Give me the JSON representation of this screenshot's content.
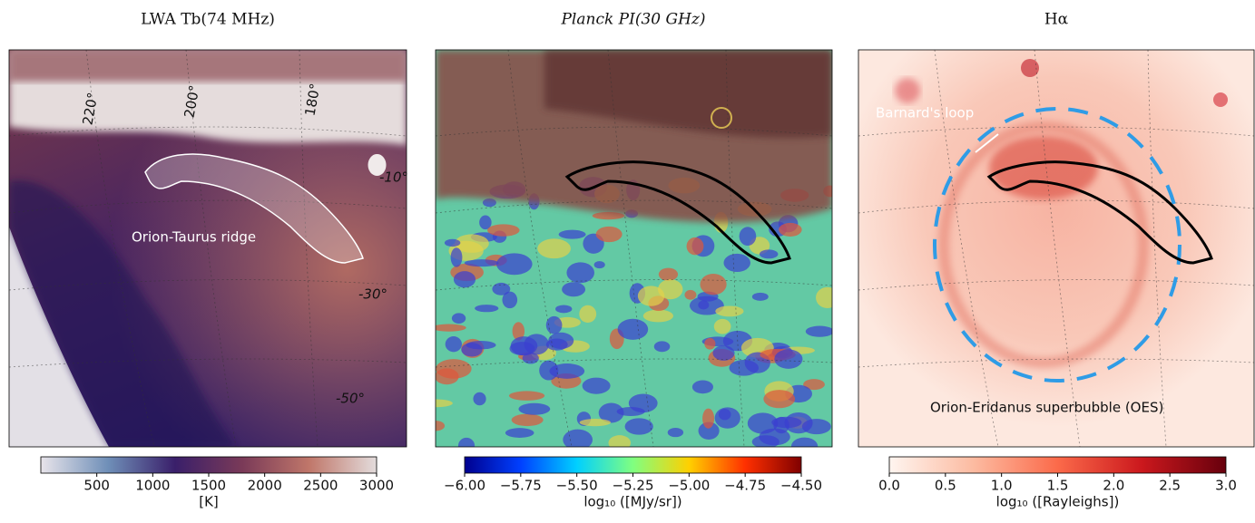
{
  "chart_data": [
    {
      "type": "colormap",
      "title": "LWA Tb(74 MHz)",
      "annotations": [
        "Orion-Taurus ridge"
      ],
      "grid_labels": [
        "220°",
        "200°",
        "180°",
        "-10°",
        "-30°",
        "-50°"
      ],
      "colorbar_label": "[K]",
      "clim": [
        0,
        3000
      ],
      "cticks": [
        500,
        1000,
        1500,
        2000,
        2500,
        3000
      ],
      "colors": [
        "#e8e4ea",
        "#6f8fb8",
        "#3a1f6a",
        "#7a3a58",
        "#c0776a",
        "#e3dcdc"
      ]
    },
    {
      "type": "colormap",
      "title": "Planck PI(30 GHz)",
      "annotations": [],
      "colorbar_label": "log₁₀ ([MJy/sr])",
      "clim": [
        -6,
        -4.5
      ],
      "cticks": [
        {
          "value": -6,
          "label": "−6.00"
        },
        {
          "value": -5.75,
          "label": "−5.75"
        },
        {
          "value": -5.5,
          "label": "−5.50"
        },
        {
          "value": -5.25,
          "label": "−5.25"
        },
        {
          "value": -5,
          "label": "−5.00"
        },
        {
          "value": -4.75,
          "label": "−4.75"
        },
        {
          "value": -4.5,
          "label": "−4.50"
        }
      ],
      "colors": [
        "#00008f",
        "#0040ff",
        "#00d0ff",
        "#80ff80",
        "#ffd000",
        "#ff3000",
        "#800000"
      ]
    },
    {
      "type": "colormap",
      "title": "Hα",
      "annotations": [
        "Barnard's loop",
        "Orion-Eridanus superbubble (OES)"
      ],
      "colorbar_label": "log₁₀ ([Rayleighs])",
      "clim": [
        0,
        3
      ],
      "cticks": [
        {
          "value": 0,
          "label": "0.0"
        },
        {
          "value": 0.5,
          "label": "0.5"
        },
        {
          "value": 1,
          "label": "1.0"
        },
        {
          "value": 1.5,
          "label": "1.5"
        },
        {
          "value": 2,
          "label": "2.0"
        },
        {
          "value": 2.5,
          "label": "2.5"
        },
        {
          "value": 3,
          "label": "3.0"
        }
      ],
      "colors": [
        "#fff5f0",
        "#fcbba1",
        "#fb6a4a",
        "#cb181d",
        "#67000d"
      ]
    }
  ]
}
